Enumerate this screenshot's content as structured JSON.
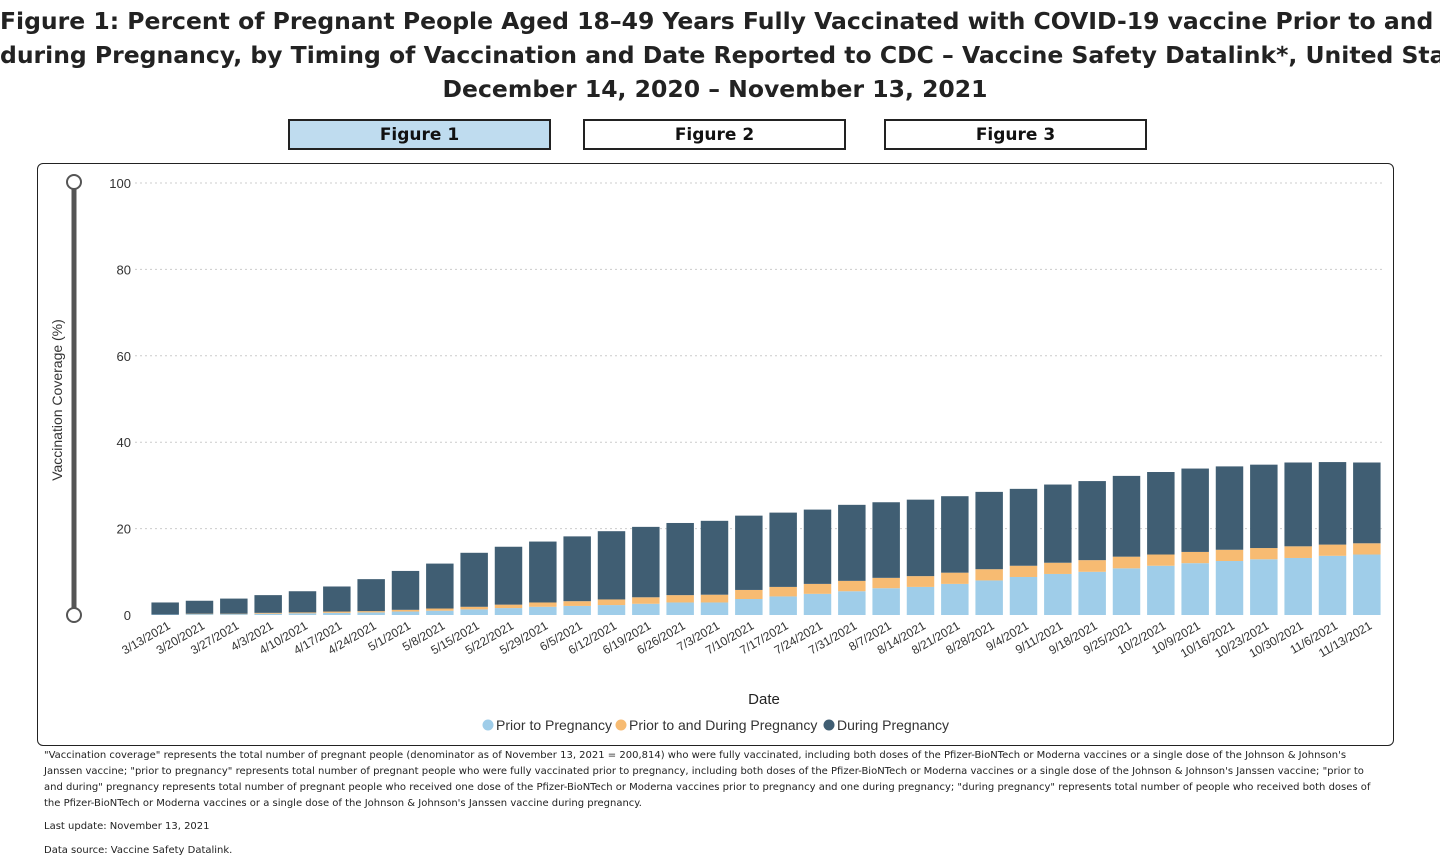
{
  "title": {
    "line1": "Figure 1: Percent of Pregnant People Aged 18–49 Years Fully Vaccinated with COVID-19 vaccine Prior to and",
    "line2": "during Pregnancy, by Timing of Vaccination and Date Reported to CDC – Vaccine Safety Datalink*, United States",
    "line3": "December 14, 2020 – November 13, 2021"
  },
  "tabs": [
    {
      "label": "Figure 1",
      "active": true
    },
    {
      "label": "Figure 2",
      "active": false
    },
    {
      "label": "Figure 3",
      "active": false
    }
  ],
  "colors": {
    "prior": "#9fcde9",
    "prior_during": "#f7bb72",
    "during": "#405e73",
    "grid": "#cccccc",
    "slider": "#555555"
  },
  "chart_data": {
    "type": "bar",
    "stacked": true,
    "xlabel": "Date",
    "ylabel": "Vaccination Coverage (%)",
    "ylim": [
      0,
      100
    ],
    "yticks": [
      0,
      20,
      40,
      60,
      80,
      100
    ],
    "categories": [
      "3/13/2021",
      "3/20/2021",
      "3/27/2021",
      "4/3/2021",
      "4/10/2021",
      "4/17/2021",
      "4/24/2021",
      "5/1/2021",
      "5/8/2021",
      "5/15/2021",
      "5/22/2021",
      "5/29/2021",
      "6/5/2021",
      "6/12/2021",
      "6/19/2021",
      "6/26/2021",
      "7/3/2021",
      "7/10/2021",
      "7/17/2021",
      "7/24/2021",
      "7/31/2021",
      "8/7/2021",
      "8/14/2021",
      "8/21/2021",
      "8/28/2021",
      "9/4/2021",
      "9/11/2021",
      "9/18/2021",
      "9/25/2021",
      "10/2/2021",
      "10/9/2021",
      "10/16/2021",
      "10/23/2021",
      "10/30/2021",
      "11/6/2021",
      "11/13/2021"
    ],
    "series": [
      {
        "name": "Prior to Pregnancy",
        "values": [
          0.1,
          0.2,
          0.2,
          0.3,
          0.4,
          0.5,
          0.6,
          0.8,
          1.0,
          1.3,
          1.6,
          1.9,
          2.1,
          2.3,
          2.6,
          2.9,
          2.9,
          3.7,
          4.3,
          4.9,
          5.5,
          6.2,
          6.5,
          7.2,
          8.0,
          8.8,
          9.5,
          10.0,
          10.8,
          11.4,
          12.0,
          12.5,
          12.9,
          13.2,
          13.7,
          14.0
        ]
      },
      {
        "name": "Prior to and During Pregnancy",
        "values": [
          0.0,
          0.1,
          0.1,
          0.2,
          0.2,
          0.3,
          0.3,
          0.4,
          0.5,
          0.6,
          0.8,
          1.0,
          1.1,
          1.3,
          1.5,
          1.7,
          1.8,
          2.1,
          2.2,
          2.3,
          2.4,
          2.4,
          2.5,
          2.6,
          2.6,
          2.6,
          2.6,
          2.7,
          2.7,
          2.6,
          2.6,
          2.6,
          2.6,
          2.7,
          2.6,
          2.6
        ]
      },
      {
        "name": "During Pregnancy",
        "values": [
          2.8,
          3.0,
          3.5,
          4.1,
          4.9,
          5.8,
          7.4,
          9.0,
          10.4,
          12.5,
          13.4,
          14.1,
          15.0,
          15.8,
          16.3,
          16.7,
          17.1,
          17.2,
          17.2,
          17.2,
          17.6,
          17.5,
          17.7,
          17.7,
          17.9,
          17.8,
          18.1,
          18.3,
          18.7,
          19.1,
          19.3,
          19.3,
          19.3,
          19.4,
          19.1,
          18.7
        ]
      }
    ],
    "legend_position": "bottom-center"
  },
  "footnote": "\"Vaccination coverage\" represents the total number of pregnant people (denominator as of November 13, 2021 = 200,814) who were fully vaccinated, including both doses of the Pfizer-BioNTech or Moderna vaccines or a single dose of the Johnson & Johnson's Janssen vaccine; \"prior to pregnancy\" represents total number of pregnant people who were fully vaccinated prior to pregnancy, including both doses of the Pfizer-BioNTech or Moderna vaccines or a single dose of the Johnson & Johnson's Janssen vaccine; \"prior to and during\" pregnancy represents total number of pregnant people who received one dose of the Pfizer-BioNTech or Moderna vaccines prior to pregnancy and one during pregnancy; \"during pregnancy\" represents total number of people who received both doses of the Pfizer-BioNTech or Moderna vaccines or a single dose of the Johnson & Johnson's Janssen vaccine during pregnancy.",
  "last_update": "Last update: November 13, 2021",
  "data_source": "Data source: Vaccine Safety Datalink."
}
